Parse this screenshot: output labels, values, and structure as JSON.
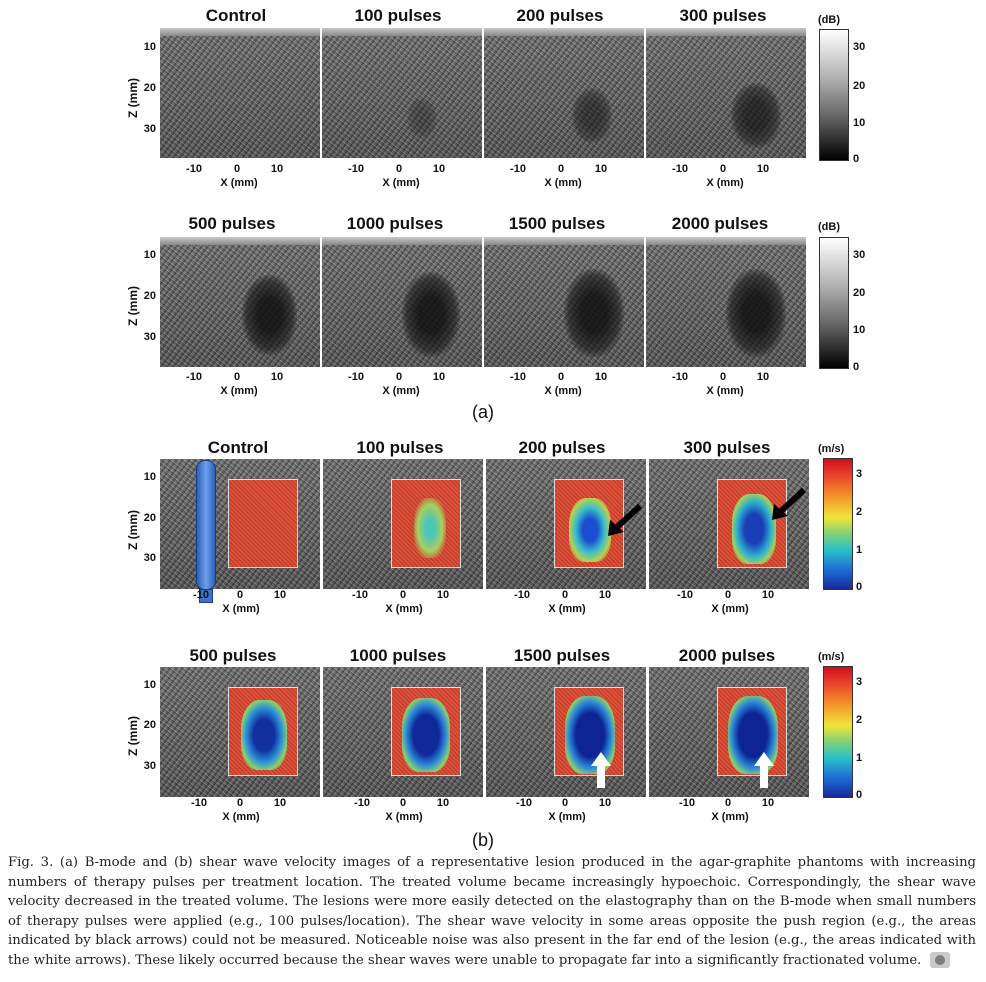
{
  "figure": {
    "panel_a": {
      "row1_titles": [
        "Control",
        "100 pulses",
        "200 pulses",
        "300 pulses"
      ],
      "row2_titles": [
        "500 pulses",
        "1000 pulses",
        "1500 pulses",
        "2000 pulses"
      ],
      "y_ticks": [
        "10",
        "20",
        "30"
      ],
      "x_ticks": [
        "-10",
        "0",
        "10"
      ],
      "x_label": "X (mm)",
      "y_label": "Z (mm)",
      "colorbar_unit": "(dB)",
      "colorbar_ticks": [
        "30",
        "20",
        "10",
        "0"
      ],
      "label": "(a)"
    },
    "panel_b": {
      "row1_titles": [
        "Control",
        "100 pulses",
        "200 pulses",
        "300 pulses"
      ],
      "row2_titles": [
        "500 pulses",
        "1000 pulses",
        "1500 pulses",
        "2000 pulses"
      ],
      "y_ticks": [
        "10",
        "20",
        "30"
      ],
      "x_ticks": [
        "-10",
        "0",
        "10"
      ],
      "x_label": "X (mm)",
      "y_label": "Z (mm)",
      "colorbar_unit": "(m/s)",
      "colorbar_ticks": [
        "3",
        "2",
        "1",
        "0"
      ],
      "label": "(b)"
    },
    "caption": "Fig. 3. (a) B-mode and (b) shear wave velocity images of a representative lesion produced in the agar-graphite phantoms with increasing numbers of therapy pulses per treatment location. The treated volume became increasingly hypoechoic. Correspondingly, the shear wave velocity decreased in the treated volume. The lesions were more easily detected on the elastography than on the B-mode when small numbers of therapy pulses were applied (e.g., 100 pulses/location). The shear wave velocity in some areas opposite the push region (e.g., the areas indicated by black arrows) could not be measured. Noticeable noise was also present in the far end of the lesion (e.g., the areas indicated with the white arrows). These likely occurred because the shear waves were unable to propagate far into a significantly fractionated volume."
  }
}
